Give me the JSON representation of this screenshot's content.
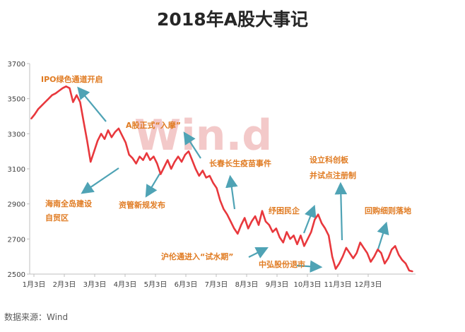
{
  "title": "2018年A股大事记",
  "source": "数据来源：Wind",
  "watermark": "Win.d",
  "colors": {
    "line": "#e8383d",
    "annotation": "#e07b22",
    "arrow": "#4fa3b5",
    "axis": "#bfbfbf",
    "watermark": "#f3c9c9"
  },
  "chart_data": {
    "type": "line",
    "title": "2018年A股大事记",
    "xlabel": "",
    "ylabel": "",
    "ylim": [
      2500,
      3700
    ],
    "yticks": [
      "3700",
      "3500",
      "3300",
      "3100",
      "2900",
      "2700",
      "2500"
    ],
    "xticks": [
      "1月3日",
      "2月3日",
      "3月3日",
      "4月3日",
      "5月3日",
      "6月3日",
      "7月3日",
      "8月3日",
      "9月3日",
      "10月3日",
      "11月3日",
      "12月3日"
    ],
    "grid": false,
    "series": [
      {
        "values": [
          3385,
          3410,
          3440,
          3460,
          3480,
          3500,
          3520,
          3530,
          3545,
          3560,
          3570,
          3560,
          3480,
          3520,
          3480,
          3370,
          3260,
          3140,
          3200,
          3260,
          3300,
          3270,
          3320,
          3280,
          3310,
          3330,
          3290,
          3250,
          3180,
          3160,
          3130,
          3170,
          3150,
          3190,
          3150,
          3170,
          3130,
          3070,
          3110,
          3150,
          3100,
          3140,
          3170,
          3140,
          3180,
          3200,
          3150,
          3100,
          3060,
          3090,
          3050,
          3060,
          3020,
          2990,
          2920,
          2870,
          2840,
          2800,
          2760,
          2730,
          2780,
          2820,
          2760,
          2800,
          2830,
          2780,
          2860,
          2800,
          2780,
          2740,
          2760,
          2710,
          2680,
          2740,
          2700,
          2720,
          2670,
          2720,
          2660,
          2700,
          2740,
          2810,
          2840,
          2790,
          2760,
          2720,
          2600,
          2530,
          2560,
          2600,
          2650,
          2620,
          2590,
          2620,
          2680,
          2650,
          2620,
          2570,
          2600,
          2640,
          2620,
          2560,
          2590,
          2640,
          2660,
          2610,
          2580,
          2560,
          2520,
          2515
        ]
      }
    ],
    "annotations": [
      {
        "text": "IPO绿色通道开启",
        "near": "2月初高点"
      },
      {
        "text": "海南全岛建设",
        "near": "4月初"
      },
      {
        "text": "自贸区",
        "near": "4月初"
      },
      {
        "text": "资管新规发布",
        "near": "4月下旬"
      },
      {
        "text": "A股正式“入摩”",
        "near": "6月1日"
      },
      {
        "text": "长春长生疫苗事件",
        "near": "7月下旬"
      },
      {
        "text": "设立科创板",
        "near": "11月5日"
      },
      {
        "text": "并试点注册制",
        "near": "11月5日"
      },
      {
        "text": "纾困民企",
        "near": "10月中旬"
      },
      {
        "text": "回购细则落地",
        "near": "11月下旬"
      },
      {
        "text": "沪伦通进入“试水期”",
        "near": "9月下旬"
      },
      {
        "text": "中弘股份退市",
        "near": "10月中旬"
      }
    ]
  }
}
